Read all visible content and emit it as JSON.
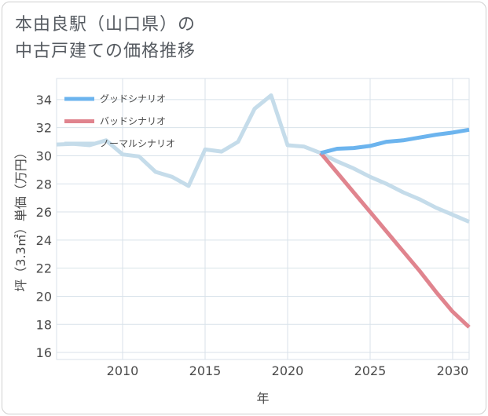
{
  "title_line1": "本由良駅（山口県）の",
  "title_line2": "中古戸建ての価格推移",
  "chart_data": {
    "type": "line",
    "xlabel": "年",
    "ylabel": "坪（3.3㎡）単価（万円）",
    "xlim": [
      2006,
      2031
    ],
    "ylim": [
      15.5,
      35.5
    ],
    "xticks": [
      2010,
      2015,
      2020,
      2025,
      2030
    ],
    "yticks": [
      16,
      18,
      20,
      22,
      24,
      26,
      28,
      30,
      32,
      34
    ],
    "legend_position": "top-left",
    "series": [
      {
        "name": "グッドシナリオ",
        "color": "#6cb4ee",
        "x": [
          2022,
          2023,
          2024,
          2025,
          2026,
          2027,
          2028,
          2029,
          2030,
          2031
        ],
        "y": [
          30.2,
          30.5,
          30.55,
          30.7,
          31.0,
          31.1,
          31.3,
          31.5,
          31.65,
          31.85
        ]
      },
      {
        "name": "バッドシナリオ",
        "color": "#e0848e",
        "x": [
          2022,
          2023,
          2024,
          2025,
          2026,
          2027,
          2028,
          2029,
          2030,
          2031
        ],
        "y": [
          30.2,
          28.8,
          27.4,
          26.0,
          24.6,
          23.2,
          21.8,
          20.3,
          18.9,
          17.8
        ]
      },
      {
        "name": "ノーマルシナリオ",
        "color": "#c5dcea",
        "x": [
          2006,
          2007,
          2008,
          2009,
          2010,
          2011,
          2012,
          2013,
          2014,
          2015,
          2016,
          2017,
          2018,
          2019,
          2020,
          2021,
          2022,
          2023,
          2024,
          2025,
          2026,
          2027,
          2028,
          2029,
          2030,
          2031
        ],
        "y": [
          30.8,
          30.85,
          30.75,
          31.1,
          30.1,
          29.95,
          28.85,
          28.5,
          27.85,
          30.45,
          30.3,
          31.0,
          33.35,
          34.3,
          30.75,
          30.65,
          30.2,
          29.6,
          29.1,
          28.5,
          28.0,
          27.4,
          26.9,
          26.3,
          25.8,
          25.3
        ]
      }
    ]
  }
}
